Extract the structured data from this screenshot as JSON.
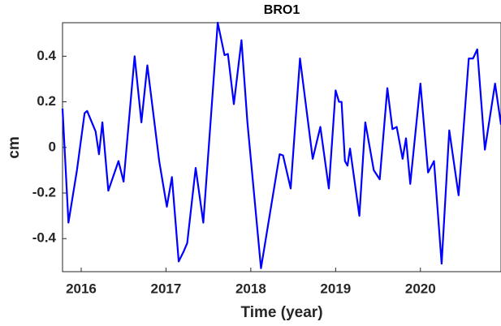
{
  "chart_data": {
    "type": "line",
    "title": "BRO1",
    "xlabel": "Time (year)",
    "ylabel": "cm",
    "x": [
      2015.78,
      2015.85,
      2015.95,
      2016.04,
      2016.07,
      2016.17,
      2016.21,
      2016.25,
      2016.32,
      2016.44,
      2016.5,
      2016.63,
      2016.71,
      2016.78,
      2016.92,
      2017.01,
      2017.07,
      2017.15,
      2017.21,
      2017.25,
      2017.35,
      2017.44,
      2017.61,
      2017.69,
      2017.73,
      2017.8,
      2017.89,
      2017.96,
      2018.12,
      2018.34,
      2018.38,
      2018.47,
      2018.58,
      2018.73,
      2018.82,
      2018.92,
      2019.0,
      2019.04,
      2019.07,
      2019.11,
      2019.14,
      2019.17,
      2019.28,
      2019.35,
      2019.45,
      2019.52,
      2019.61,
      2019.67,
      2019.72,
      2019.79,
      2019.83,
      2019.88,
      2020.0,
      2020.09,
      2020.16,
      2020.25,
      2020.34,
      2020.45,
      2020.57,
      2020.62,
      2020.67,
      2020.76,
      2020.88,
      2020.95
    ],
    "series": [
      {
        "name": "BRO1",
        "color": "#0000ff",
        "values": [
          0.17,
          -0.33,
          -0.1,
          0.15,
          0.16,
          0.07,
          -0.03,
          0.11,
          -0.19,
          -0.06,
          -0.15,
          0.4,
          0.11,
          0.36,
          -0.06,
          -0.26,
          -0.13,
          -0.5,
          -0.455,
          -0.42,
          -0.09,
          -0.33,
          0.547,
          0.405,
          0.41,
          0.19,
          0.47,
          0.11,
          -0.53,
          -0.03,
          -0.035,
          -0.18,
          0.39,
          -0.05,
          0.09,
          -0.18,
          0.25,
          0.2,
          0.2,
          -0.06,
          -0.08,
          -0.005,
          -0.3,
          0.11,
          -0.1,
          -0.14,
          0.26,
          0.08,
          0.09,
          -0.05,
          0.04,
          -0.16,
          0.28,
          -0.11,
          -0.06,
          -0.51,
          0.075,
          -0.21,
          0.39,
          0.39,
          0.43,
          -0.01,
          0.28,
          0.1
        ]
      }
    ],
    "xlim": [
      2015.78,
      2020.95
    ],
    "ylim": [
      -0.545,
      0.547
    ],
    "xticks": [
      2016,
      2017,
      2018,
      2019,
      2020
    ],
    "yticks": [
      -0.4,
      -0.2,
      0,
      0.2,
      0.4
    ]
  }
}
